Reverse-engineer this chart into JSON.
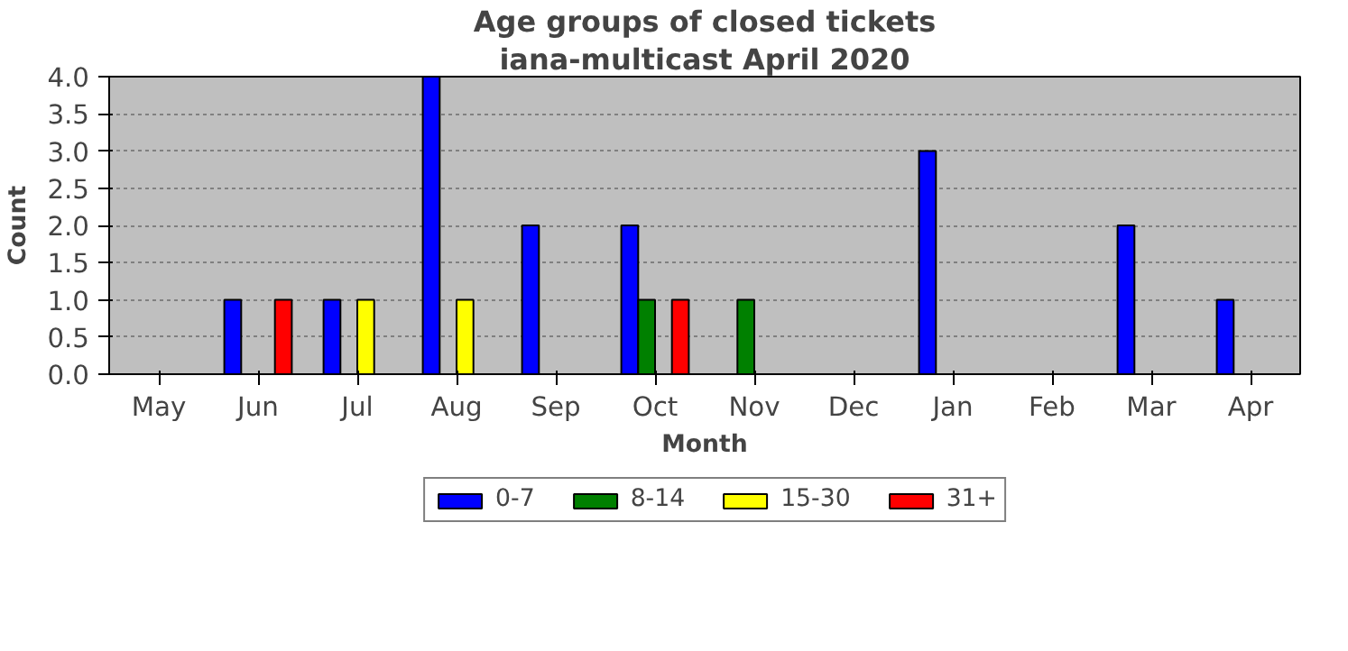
{
  "chart_data": {
    "type": "bar",
    "title": "Age groups of closed tickets",
    "subtitle": "iana-multicast April 2020",
    "xlabel": "Month",
    "ylabel": "Count",
    "categories": [
      "May",
      "Jun",
      "Jul",
      "Aug",
      "Sep",
      "Oct",
      "Nov",
      "Dec",
      "Jan",
      "Feb",
      "Mar",
      "Apr"
    ],
    "series": [
      {
        "name": "0-7",
        "color": "#0000ff",
        "values": [
          0,
          1,
          1,
          4,
          2,
          2,
          0,
          0,
          3,
          0,
          2,
          1
        ]
      },
      {
        "name": "8-14",
        "color": "#008000",
        "values": [
          0,
          0,
          0,
          0,
          0,
          1,
          1,
          0,
          0,
          0,
          0,
          0
        ]
      },
      {
        "name": "15-30",
        "color": "#ffff00",
        "values": [
          0,
          0,
          1,
          1,
          0,
          0,
          0,
          0,
          0,
          0,
          0,
          0
        ]
      },
      {
        "name": "31+",
        "color": "#ff0000",
        "values": [
          0,
          1,
          0,
          0,
          0,
          1,
          0,
          0,
          0,
          0,
          0,
          0
        ]
      }
    ],
    "ylim": [
      0,
      4
    ],
    "yticks": [
      {
        "value": 0,
        "label": "0.0"
      },
      0.5,
      {
        "value": 1,
        "label": "1.0"
      },
      1.5,
      {
        "value": 2,
        "label": "2.0"
      },
      2.5,
      {
        "value": 3,
        "label": "3.0"
      },
      3.5,
      {
        "value": 4,
        "label": "4.0"
      }
    ],
    "grid": "y",
    "legend": "bottom"
  }
}
